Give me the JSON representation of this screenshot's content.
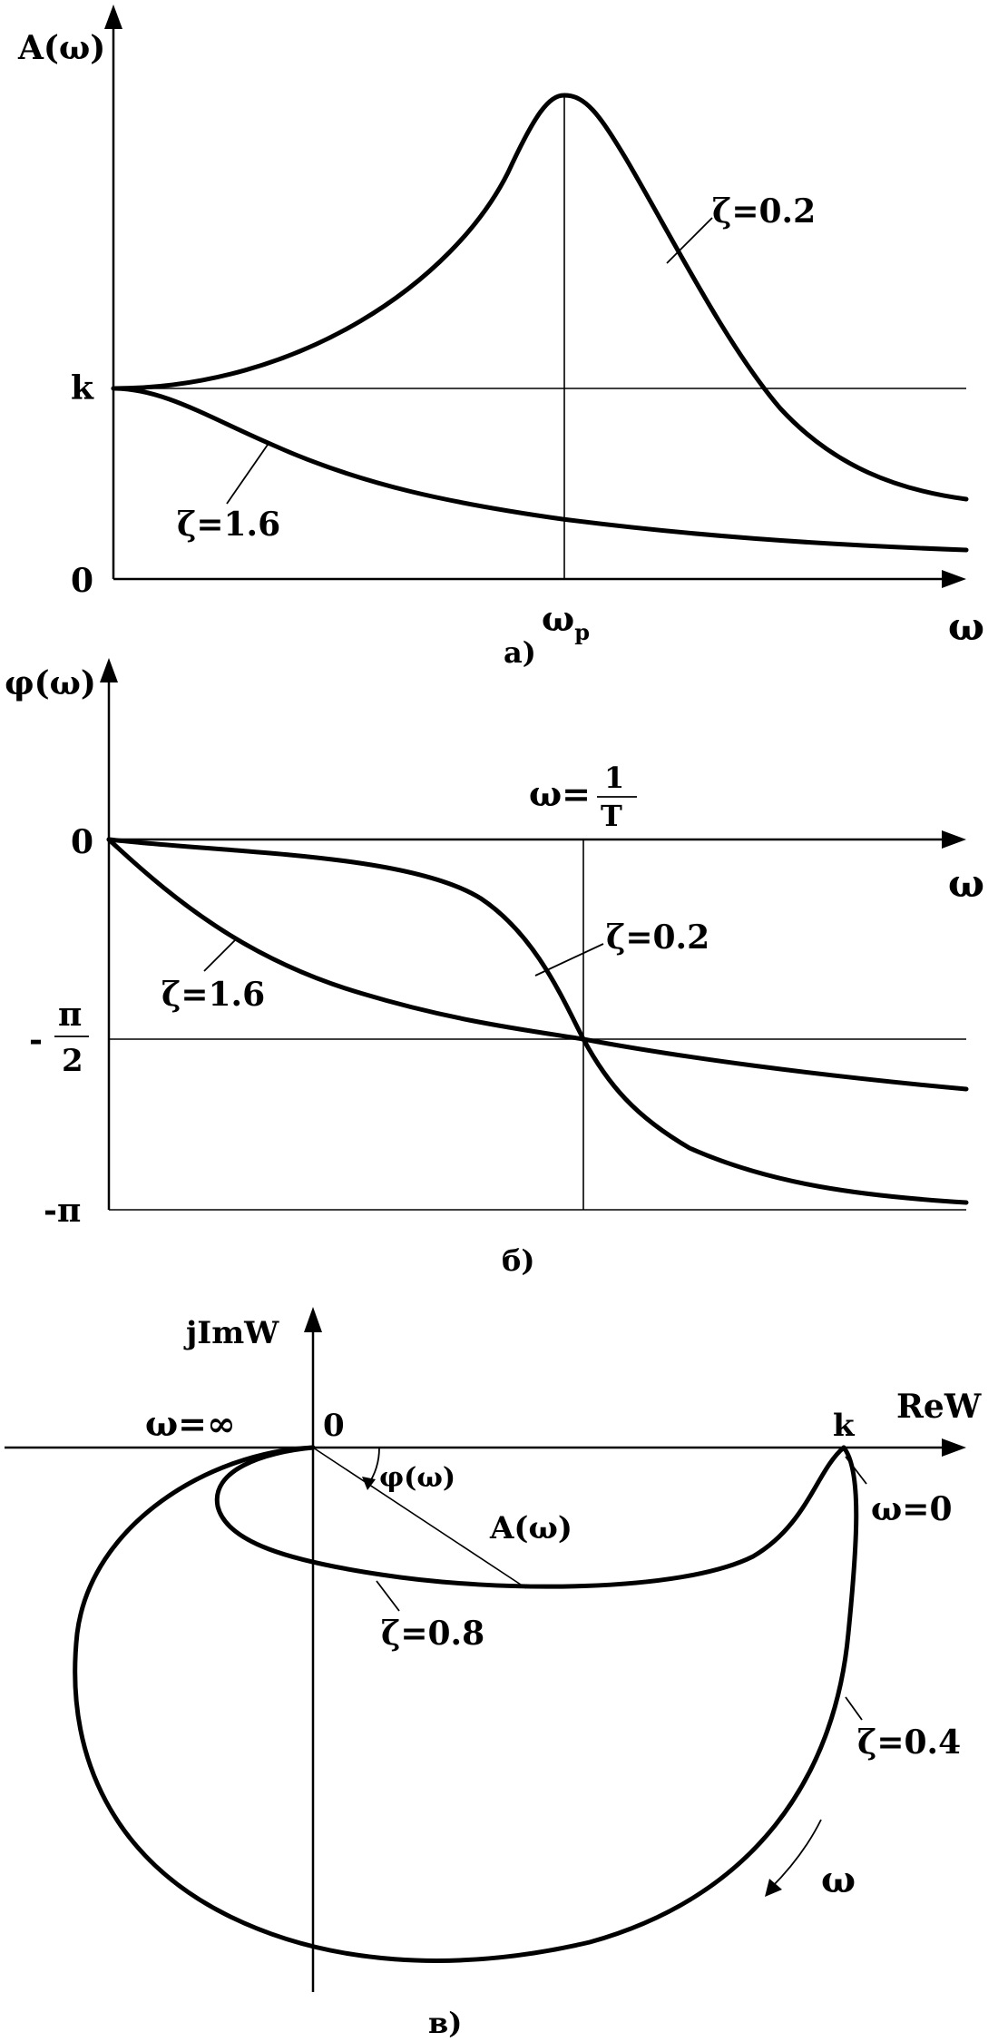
{
  "panel_a": {
    "y_axis_label": "A(ω)",
    "x_axis_label": "ω",
    "k_tick": "k",
    "zero_tick": "0",
    "resonance_tick_main": "ω",
    "resonance_tick_sub": "p",
    "curve_low_damping": "ζ=0.2",
    "curve_high_damping": "ζ=1.6",
    "caption": "а)"
  },
  "panel_b": {
    "y_axis_label": "φ(ω)",
    "x_axis_label": "ω",
    "zero_tick": "0",
    "half_pi_sign": "-",
    "half_pi_num": "π",
    "half_pi_den": "2",
    "minus_pi_tick": "-π",
    "marker_prefix": "ω=",
    "marker_num": "1",
    "marker_den": "T",
    "curve_low_damping": "ζ=0.2",
    "curve_high_damping": "ζ=1.6",
    "caption": "б)"
  },
  "panel_c": {
    "y_axis_label": "jImW",
    "x_axis_label": "ReW",
    "origin_label": "0",
    "k_label": "k",
    "omega_infinity": "ω=∞",
    "omega_zero": "ω=0",
    "phase_label": "φ(ω)",
    "amplitude_label": "A(ω)",
    "curve_inner": "ζ=0.8",
    "curve_outer": "ζ=0.4",
    "direction_label": "ω",
    "caption": "в)"
  }
}
